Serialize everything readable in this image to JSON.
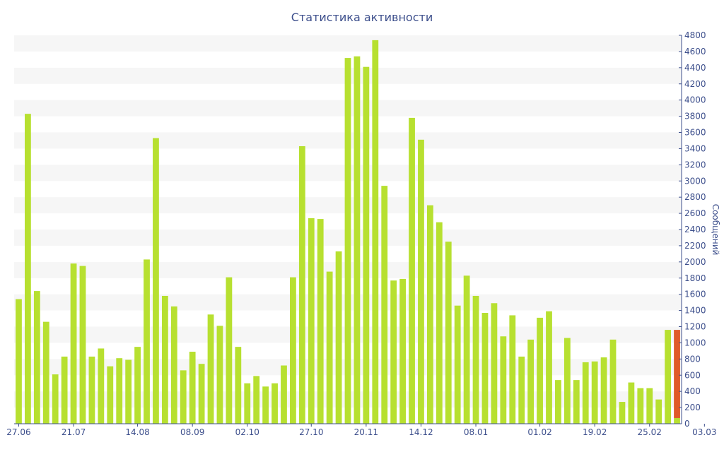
{
  "chart_data": {
    "type": "bar",
    "title": "Статистика активности",
    "ylabel": "Сообщений",
    "xlabel": "",
    "ylim": [
      0,
      4800
    ],
    "ytick_step": 200,
    "grid": "horizontal-bands",
    "y_axis_position": "right",
    "x_tick_labels": [
      {
        "label": "27.06",
        "index": 0
      },
      {
        "label": "21.07",
        "index": 6
      },
      {
        "label": "14.08",
        "index": 13
      },
      {
        "label": "08.09",
        "index": 19
      },
      {
        "label": "02.10",
        "index": 25
      },
      {
        "label": "27.10",
        "index": 32
      },
      {
        "label": "20.11",
        "index": 38
      },
      {
        "label": "14.12",
        "index": 44
      },
      {
        "label": "08.01",
        "index": 50
      },
      {
        "label": "01.02",
        "index": 57
      },
      {
        "label": "19.02",
        "index": 63
      },
      {
        "label": "25.02",
        "index": 69
      },
      {
        "label": "03.03",
        "index": 75
      }
    ],
    "values": [
      1540,
      3830,
      1640,
      1260,
      610,
      830,
      1980,
      1950,
      830,
      930,
      710,
      810,
      790,
      950,
      2030,
      3530,
      1580,
      1450,
      660,
      890,
      740,
      1350,
      1210,
      1810,
      950,
      500,
      590,
      460,
      500,
      720,
      1810,
      3430,
      2540,
      2530,
      1880,
      2130,
      4520,
      4540,
      4410,
      4740,
      2940,
      1770,
      1790,
      3780,
      3510,
      2700,
      2490,
      2250,
      1460,
      1830,
      1580,
      1370,
      1490,
      1080,
      1340,
      830,
      1040,
      1310,
      1390,
      540,
      1060,
      540,
      760,
      770,
      820,
      1040,
      270,
      510,
      440,
      440,
      300,
      1160
    ],
    "highlight": {
      "value": 1160,
      "value_lower_part": 70
    },
    "colors": {
      "bar": "#b7e030",
      "highlight": "#e05a28",
      "highlight_lower": "#b7e030",
      "text": "#3d4f8c",
      "band": "#f6f6f6"
    }
  }
}
